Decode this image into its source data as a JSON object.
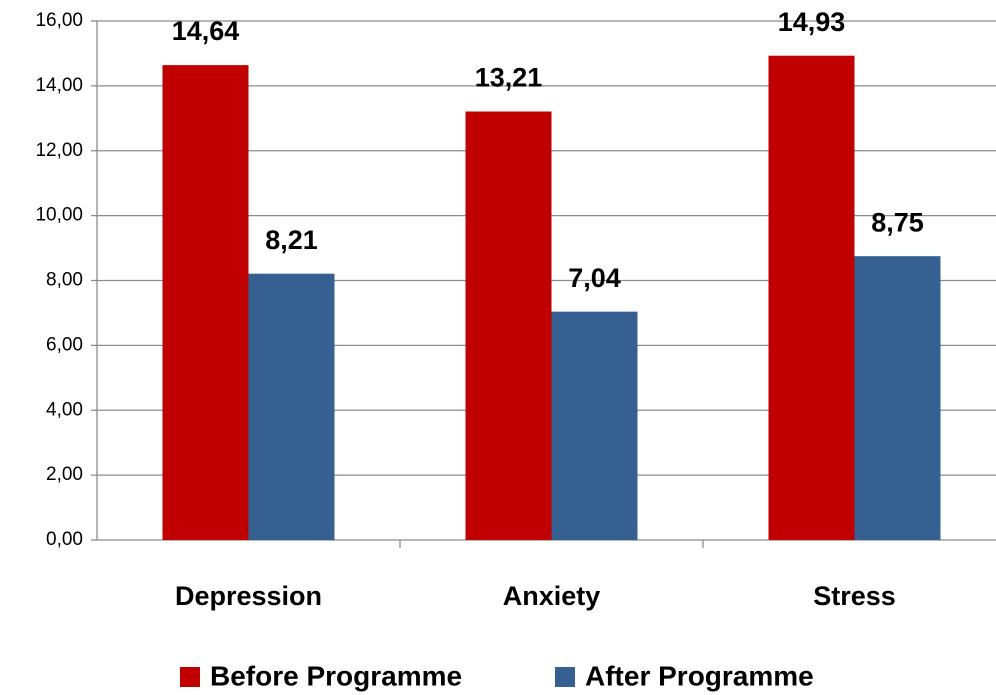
{
  "chart_data": {
    "type": "bar",
    "categories": [
      "Depression",
      "Anxiety",
      "Stress"
    ],
    "series": [
      {
        "name": "Before Programme",
        "color": "#c00000",
        "values": [
          14.64,
          13.21,
          14.93
        ],
        "value_labels": [
          "14,64",
          "13,21",
          "14,93"
        ]
      },
      {
        "name": "After Programme",
        "color": "#366092",
        "values": [
          8.21,
          7.04,
          8.75
        ],
        "value_labels": [
          "8,21",
          "7,04",
          "8,75"
        ]
      }
    ],
    "ylim": [
      0,
      16
    ],
    "yticks": [
      {
        "value": 0,
        "label": "0,00"
      },
      {
        "value": 2,
        "label": "2,00"
      },
      {
        "value": 4,
        "label": "4,00"
      },
      {
        "value": 6,
        "label": "6,00"
      },
      {
        "value": 8,
        "label": "8,00"
      },
      {
        "value": 10,
        "label": "10,00"
      },
      {
        "value": 12,
        "label": "12,00"
      },
      {
        "value": 14,
        "label": "14,00"
      },
      {
        "value": 16,
        "label": "16,00"
      }
    ],
    "grid": true,
    "legend": "bottom"
  }
}
